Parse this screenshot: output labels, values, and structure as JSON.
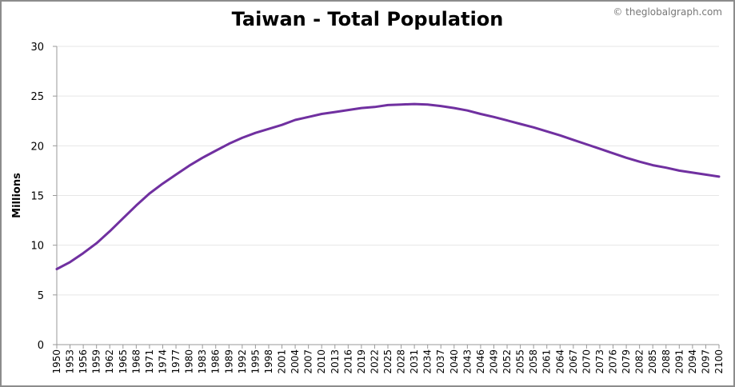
{
  "header": {
    "title": "Taiwan - Total Population",
    "credit": "© theglobalgraph.com"
  },
  "colors": {
    "line": "#7030a0",
    "grid": "#e6e6e6",
    "axis": "#999999"
  },
  "chart_data": {
    "type": "line",
    "title": "Taiwan - Total Population",
    "xlabel": "",
    "ylabel": "Millions",
    "ylim": [
      0,
      30
    ],
    "yticks": [
      "0",
      "5",
      "10",
      "15",
      "20",
      "25",
      "30"
    ],
    "xticks": [
      "1950",
      "1953",
      "1956",
      "1959",
      "1962",
      "1965",
      "1968",
      "1971",
      "1974",
      "1977",
      "1980",
      "1983",
      "1986",
      "1989",
      "1992",
      "1995",
      "1998",
      "2001",
      "2004",
      "2007",
      "2010",
      "2013",
      "2016",
      "2019",
      "2022",
      "2025",
      "2028",
      "2031",
      "2034",
      "2037",
      "2040",
      "2043",
      "2046",
      "2049",
      "2052",
      "2055",
      "2058",
      "2061",
      "2064",
      "2067",
      "2070",
      "2073",
      "2076",
      "2079",
      "2082",
      "2085",
      "2088",
      "2091",
      "2094",
      "2097",
      "2100"
    ],
    "grid": true,
    "series": [
      {
        "x": [
          1950,
          1953,
          1956,
          1959,
          1962,
          1965,
          1968,
          1971,
          1974,
          1977,
          1980,
          1983,
          1986,
          1989,
          1992,
          1995,
          1998,
          2001,
          2004,
          2007,
          2010,
          2013,
          2016,
          2019,
          2022,
          2025,
          2028,
          2031,
          2034,
          2037,
          2040,
          2043,
          2046,
          2049,
          2052,
          2055,
          2058,
          2061,
          2064,
          2067,
          2070,
          2073,
          2076,
          2079,
          2082,
          2085,
          2088,
          2091,
          2094,
          2097,
          2100
        ],
        "values": [
          7.6,
          8.3,
          9.2,
          10.2,
          11.4,
          12.7,
          14.0,
          15.2,
          16.2,
          17.1,
          18.0,
          18.8,
          19.5,
          20.2,
          20.8,
          21.3,
          21.7,
          22.1,
          22.6,
          22.9,
          23.2,
          23.4,
          23.6,
          23.8,
          23.9,
          24.1,
          24.15,
          24.2,
          24.15,
          24.0,
          23.8,
          23.55,
          23.2,
          22.9,
          22.55,
          22.2,
          21.85,
          21.45,
          21.05,
          20.6,
          20.15,
          19.7,
          19.25,
          18.8,
          18.4,
          18.05,
          17.8,
          17.5,
          17.3,
          17.1,
          16.9
        ]
      }
    ]
  }
}
